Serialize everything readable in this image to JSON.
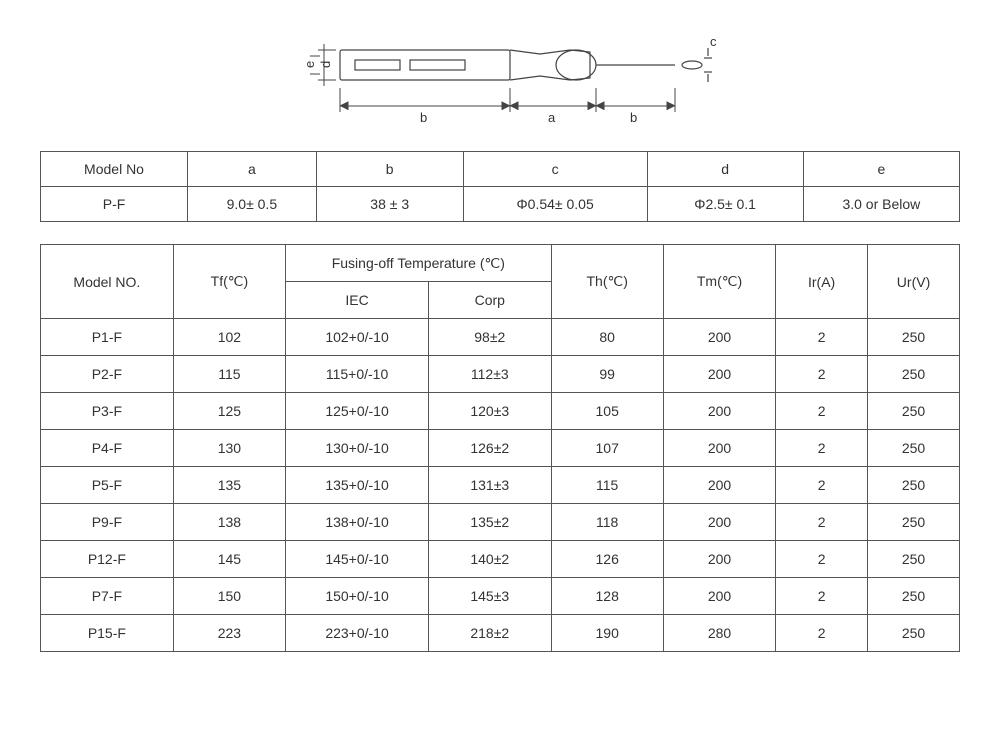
{
  "diagram": {
    "labels": {
      "a": "a",
      "b": "b",
      "c": "c",
      "d": "d",
      "e": "e"
    }
  },
  "dimensions_table": {
    "headers": [
      "Model No",
      "a",
      "b",
      "c",
      "d",
      "e"
    ],
    "row_label": "P-F",
    "values": [
      "9.0± 0.5",
      "38 ± 3",
      "Φ0.54± 0.05",
      "Φ2.5± 0.1",
      "3.0 or Below"
    ]
  },
  "spec_table": {
    "headers": {
      "model": "Model NO.",
      "tf": "Tf(℃)",
      "fusing_group": "Fusing-off Temperature (℃)",
      "iec": "IEC",
      "corp": "Corp",
      "th": "Th(℃)",
      "tm": "Tm(℃)",
      "ir": "Ir(A)",
      "ur": "Ur(V)"
    },
    "rows": [
      {
        "model": "P1-F",
        "tf": "102",
        "iec": "102+0/-10",
        "corp": "98±2",
        "th": "80",
        "tm": "200",
        "ir": "2",
        "ur": "250"
      },
      {
        "model": "P2-F",
        "tf": "115",
        "iec": "115+0/-10",
        "corp": "112±3",
        "th": "99",
        "tm": "200",
        "ir": "2",
        "ur": "250"
      },
      {
        "model": "P3-F",
        "tf": "125",
        "iec": "125+0/-10",
        "corp": "120±3",
        "th": "105",
        "tm": "200",
        "ir": "2",
        "ur": "250"
      },
      {
        "model": "P4-F",
        "tf": "130",
        "iec": "130+0/-10",
        "corp": "126±2",
        "th": "107",
        "tm": "200",
        "ir": "2",
        "ur": "250"
      },
      {
        "model": "P5-F",
        "tf": "135",
        "iec": "135+0/-10",
        "corp": "131±3",
        "th": "115",
        "tm": "200",
        "ir": "2",
        "ur": "250"
      },
      {
        "model": "P9-F",
        "tf": "138",
        "iec": "138+0/-10",
        "corp": "135±2",
        "th": "118",
        "tm": "200",
        "ir": "2",
        "ur": "250"
      },
      {
        "model": "P12-F",
        "tf": "145",
        "iec": "145+0/-10",
        "corp": "140±2",
        "th": "126",
        "tm": "200",
        "ir": "2",
        "ur": "250"
      },
      {
        "model": "P7-F",
        "tf": "150",
        "iec": "150+0/-10",
        "corp": "145±3",
        "th": "128",
        "tm": "200",
        "ir": "2",
        "ur": "250"
      },
      {
        "model": "P15-F",
        "tf": "223",
        "iec": "223+0/-10",
        "corp": "218±2",
        "th": "190",
        "tm": "280",
        "ir": "2",
        "ur": "250"
      }
    ]
  },
  "style": {
    "border_color": "#555",
    "font_size": 14,
    "col_widths_dims": [
      "16%",
      "14%",
      "16%",
      "20%",
      "17%",
      "17%"
    ],
    "col_widths_spec": [
      "13%",
      "11%",
      "14%",
      "12%",
      "11%",
      "11%",
      "9%",
      "9%"
    ]
  }
}
